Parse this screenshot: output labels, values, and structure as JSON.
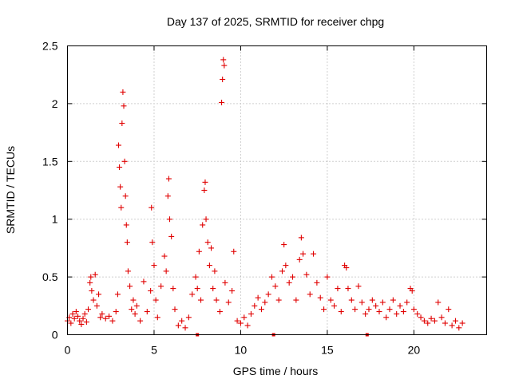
{
  "chart_data": {
    "type": "scatter",
    "title": "Day 137 of 2025, SRMTID for receiver chpg",
    "xlabel": "GPS time / hours",
    "ylabel": "SRMTID / TECUs",
    "xlim": [
      0,
      24.2
    ],
    "ylim": [
      0,
      2.5
    ],
    "xticks": [
      0,
      5,
      10,
      15,
      20
    ],
    "yticks": [
      0,
      0.5,
      1,
      1.5,
      2,
      2.5
    ],
    "xtick_labels": [
      "0",
      "5",
      "10",
      "15",
      "20"
    ],
    "ytick_labels": [
      "0",
      "0.5",
      "1",
      "1.5",
      "2",
      "2.5"
    ],
    "grid": true,
    "marker": "+",
    "color": "#e00000",
    "series": [
      {
        "name": "SRMTID",
        "points": [
          [
            0.0,
            0.12
          ],
          [
            0.1,
            0.15
          ],
          [
            0.2,
            0.1
          ],
          [
            0.3,
            0.18
          ],
          [
            0.4,
            0.14
          ],
          [
            0.5,
            0.2
          ],
          [
            0.6,
            0.16
          ],
          [
            0.7,
            0.12
          ],
          [
            0.8,
            0.09
          ],
          [
            0.9,
            0.14
          ],
          [
            1.0,
            0.18
          ],
          [
            1.1,
            0.11
          ],
          [
            1.2,
            0.22
          ],
          [
            1.3,
            0.45
          ],
          [
            1.35,
            0.5
          ],
          [
            1.4,
            0.38
          ],
          [
            1.5,
            0.3
          ],
          [
            1.6,
            0.52
          ],
          [
            1.7,
            0.25
          ],
          [
            1.8,
            0.35
          ],
          [
            1.9,
            0.15
          ],
          [
            2.0,
            0.18
          ],
          [
            2.2,
            0.14
          ],
          [
            2.4,
            0.16
          ],
          [
            2.6,
            0.12
          ],
          [
            2.8,
            0.2
          ],
          [
            2.9,
            0.35
          ],
          [
            2.95,
            1.64
          ],
          [
            3.0,
            1.45
          ],
          [
            3.05,
            1.28
          ],
          [
            3.1,
            1.1
          ],
          [
            3.15,
            1.83
          ],
          [
            3.2,
            2.1
          ],
          [
            3.25,
            1.98
          ],
          [
            3.3,
            1.5
          ],
          [
            3.35,
            1.2
          ],
          [
            3.4,
            0.95
          ],
          [
            3.45,
            0.8
          ],
          [
            3.5,
            0.55
          ],
          [
            3.6,
            0.42
          ],
          [
            3.7,
            0.22
          ],
          [
            3.8,
            0.3
          ],
          [
            3.9,
            0.18
          ],
          [
            4.0,
            0.25
          ],
          [
            4.2,
            0.12
          ],
          [
            4.4,
            0.46
          ],
          [
            4.6,
            0.2
          ],
          [
            4.8,
            0.38
          ],
          [
            4.85,
            1.1
          ],
          [
            4.9,
            0.8
          ],
          [
            5.0,
            0.6
          ],
          [
            5.1,
            0.3
          ],
          [
            5.2,
            0.15
          ],
          [
            5.4,
            0.42
          ],
          [
            5.6,
            0.68
          ],
          [
            5.7,
            0.55
          ],
          [
            5.8,
            1.2
          ],
          [
            5.85,
            1.35
          ],
          [
            5.9,
            1.0
          ],
          [
            6.0,
            0.85
          ],
          [
            6.1,
            0.4
          ],
          [
            6.2,
            0.22
          ],
          [
            6.4,
            0.08
          ],
          [
            6.6,
            0.12
          ],
          [
            6.8,
            0.06
          ],
          [
            7.0,
            0.15
          ],
          [
            7.2,
            0.35
          ],
          [
            7.4,
            0.5
          ],
          [
            7.5,
            0.4
          ],
          [
            7.6,
            0.72
          ],
          [
            7.7,
            0.3
          ],
          [
            7.8,
            0.95
          ],
          [
            7.9,
            1.25
          ],
          [
            7.95,
            1.32
          ],
          [
            8.0,
            1.0
          ],
          [
            8.1,
            0.8
          ],
          [
            8.2,
            0.6
          ],
          [
            8.3,
            0.75
          ],
          [
            8.4,
            0.4
          ],
          [
            8.5,
            0.55
          ],
          [
            8.6,
            0.3
          ],
          [
            8.8,
            0.2
          ],
          [
            8.9,
            2.01
          ],
          [
            8.95,
            2.21
          ],
          [
            9.0,
            2.38
          ],
          [
            9.05,
            2.33
          ],
          [
            9.1,
            0.45
          ],
          [
            9.3,
            0.28
          ],
          [
            9.5,
            0.38
          ],
          [
            9.6,
            0.72
          ],
          [
            9.8,
            0.12
          ],
          [
            10.0,
            0.1
          ],
          [
            10.2,
            0.15
          ],
          [
            10.4,
            0.08
          ],
          [
            10.6,
            0.18
          ],
          [
            10.8,
            0.25
          ],
          [
            11.0,
            0.32
          ],
          [
            11.2,
            0.22
          ],
          [
            11.4,
            0.28
          ],
          [
            11.6,
            0.35
          ],
          [
            11.8,
            0.5
          ],
          [
            12.0,
            0.42
          ],
          [
            12.2,
            0.3
          ],
          [
            12.4,
            0.55
          ],
          [
            12.5,
            0.78
          ],
          [
            12.6,
            0.6
          ],
          [
            12.8,
            0.45
          ],
          [
            13.0,
            0.5
          ],
          [
            13.2,
            0.3
          ],
          [
            13.4,
            0.65
          ],
          [
            13.5,
            0.84
          ],
          [
            13.6,
            0.7
          ],
          [
            13.8,
            0.52
          ],
          [
            14.0,
            0.35
          ],
          [
            14.2,
            0.7
          ],
          [
            14.4,
            0.45
          ],
          [
            14.6,
            0.32
          ],
          [
            14.8,
            0.22
          ],
          [
            15.0,
            0.5
          ],
          [
            15.2,
            0.3
          ],
          [
            15.4,
            0.25
          ],
          [
            15.6,
            0.4
          ],
          [
            15.8,
            0.2
          ],
          [
            16.0,
            0.6
          ],
          [
            16.1,
            0.58
          ],
          [
            16.2,
            0.4
          ],
          [
            16.4,
            0.3
          ],
          [
            16.6,
            0.22
          ],
          [
            16.8,
            0.42
          ],
          [
            17.0,
            0.28
          ],
          [
            17.2,
            0.18
          ],
          [
            17.4,
            0.22
          ],
          [
            17.6,
            0.3
          ],
          [
            17.8,
            0.25
          ],
          [
            18.0,
            0.2
          ],
          [
            18.2,
            0.28
          ],
          [
            18.4,
            0.15
          ],
          [
            18.6,
            0.22
          ],
          [
            18.8,
            0.3
          ],
          [
            19.0,
            0.18
          ],
          [
            19.2,
            0.25
          ],
          [
            19.4,
            0.2
          ],
          [
            19.6,
            0.28
          ],
          [
            19.8,
            0.4
          ],
          [
            19.9,
            0.38
          ],
          [
            20.0,
            0.22
          ],
          [
            20.2,
            0.18
          ],
          [
            20.4,
            0.15
          ],
          [
            20.6,
            0.12
          ],
          [
            20.8,
            0.1
          ],
          [
            21.0,
            0.14
          ],
          [
            21.2,
            0.12
          ],
          [
            21.4,
            0.28
          ],
          [
            21.6,
            0.15
          ],
          [
            21.8,
            0.1
          ],
          [
            22.0,
            0.22
          ],
          [
            22.2,
            0.08
          ],
          [
            22.4,
            0.12
          ],
          [
            22.6,
            0.06
          ],
          [
            22.8,
            0.1
          ]
        ]
      }
    ],
    "axis_markers_x": [
      7.5,
      11.9,
      17.3
    ]
  }
}
